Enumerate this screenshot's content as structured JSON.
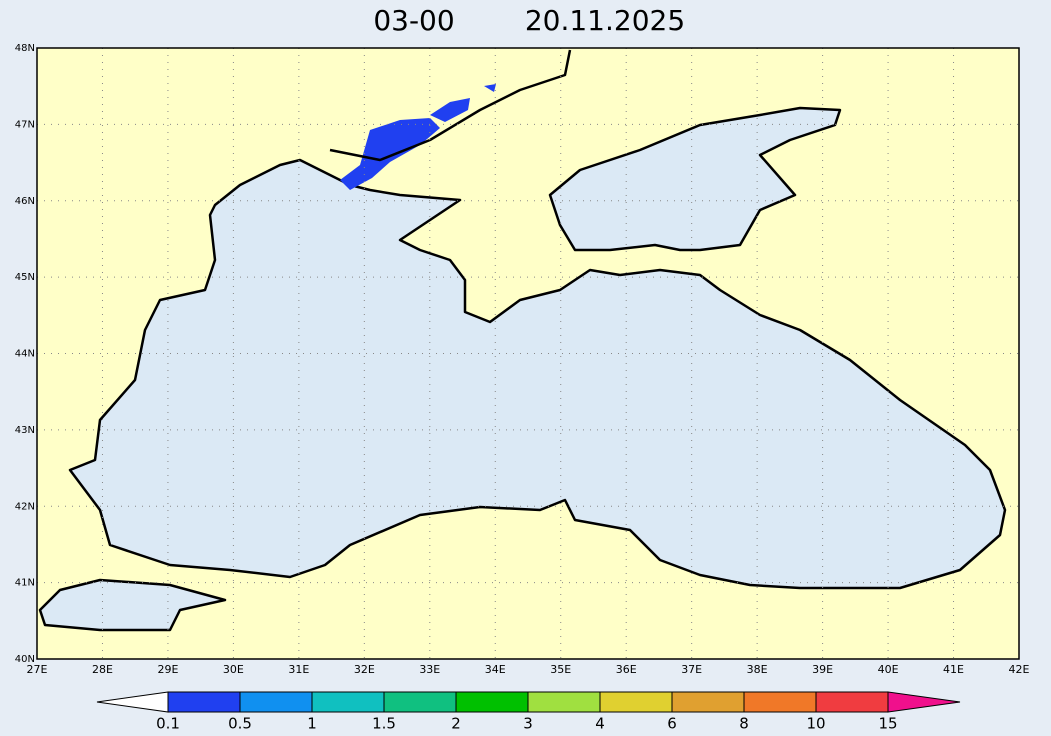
{
  "title": {
    "time": "03-00",
    "date": "20.11.2025"
  },
  "map": {
    "lat_labels": [
      "48N",
      "47N",
      "46N",
      "45N",
      "44N",
      "43N",
      "42N",
      "41N",
      "40N"
    ],
    "lon_labels": [
      "27E",
      "28E",
      "29E",
      "30E",
      "31E",
      "32E",
      "33E",
      "34E",
      "35E",
      "36E",
      "37E",
      "38E",
      "39E",
      "40E",
      "41E",
      "42E"
    ]
  },
  "colorbar": {
    "labels": [
      "0.1",
      "0.5",
      "1",
      "1.5",
      "2",
      "3",
      "4",
      "6",
      "8",
      "10",
      "15"
    ],
    "colors": [
      "#ffffff",
      "#2040f0",
      "#1090f0",
      "#10c0c0",
      "#10c080",
      "#00c000",
      "#a0e040",
      "#e0d030",
      "#e0a030",
      "#f07828",
      "#f03c40",
      "#f0108c"
    ]
  }
}
